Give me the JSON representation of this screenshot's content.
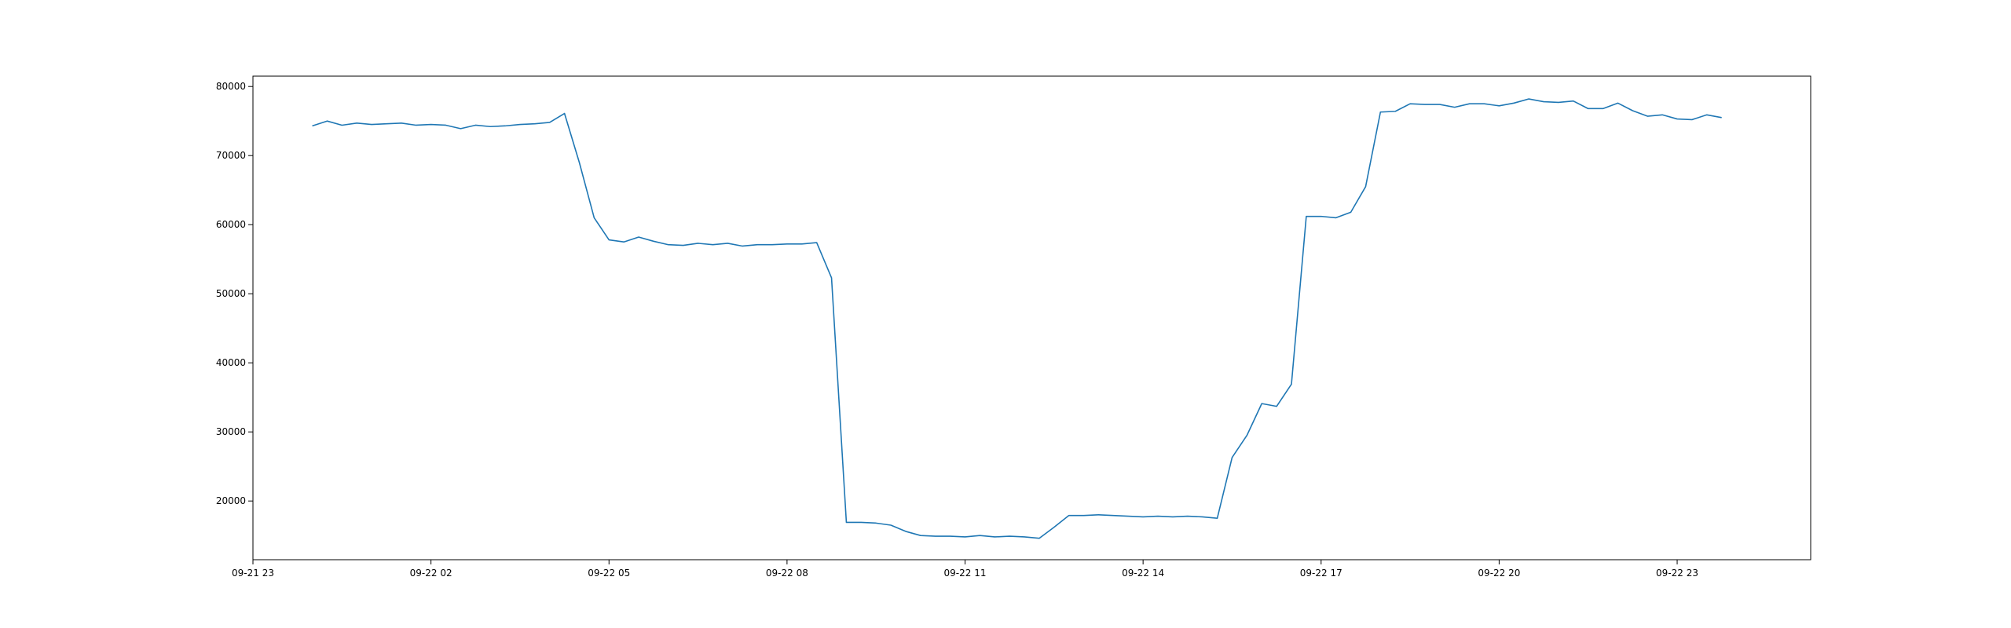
{
  "chart_data": {
    "type": "line",
    "title": "",
    "xlabel": "",
    "ylabel": "",
    "grid": false,
    "colors": {
      "line": "#1f77b4",
      "axes": "#000000",
      "background": "#ffffff"
    },
    "xlim": [
      "09-21 23:00",
      "09-23 01:15"
    ],
    "ylim": [
      11500,
      81500
    ],
    "x_tick_labels": [
      "09-21 23",
      "09-22 02",
      "09-22 05",
      "09-22 08",
      "09-22 11",
      "09-22 14",
      "09-22 17",
      "09-22 20",
      "09-22 23"
    ],
    "y_ticks": [
      20000,
      30000,
      40000,
      50000,
      60000,
      70000,
      80000
    ],
    "y_tick_labels": [
      "20000",
      "30000",
      "40000",
      "50000",
      "60000",
      "70000",
      "80000"
    ],
    "series": [
      {
        "name": "",
        "x": [
          "09-22 00:00",
          "09-22 00:15",
          "09-22 00:30",
          "09-22 00:45",
          "09-22 01:00",
          "09-22 01:15",
          "09-22 01:30",
          "09-22 01:45",
          "09-22 02:00",
          "09-22 02:15",
          "09-22 02:30",
          "09-22 02:45",
          "09-22 03:00",
          "09-22 03:15",
          "09-22 03:30",
          "09-22 03:45",
          "09-22 04:00",
          "09-22 04:15",
          "09-22 04:30",
          "09-22 04:45",
          "09-22 05:00",
          "09-22 05:15",
          "09-22 05:30",
          "09-22 05:45",
          "09-22 06:00",
          "09-22 06:15",
          "09-22 06:30",
          "09-22 06:45",
          "09-22 07:00",
          "09-22 07:15",
          "09-22 07:30",
          "09-22 07:45",
          "09-22 08:00",
          "09-22 08:15",
          "09-22 08:30",
          "09-22 08:45",
          "09-22 09:00",
          "09-22 09:15",
          "09-22 09:30",
          "09-22 09:45",
          "09-22 10:00",
          "09-22 10:15",
          "09-22 10:30",
          "09-22 10:45",
          "09-22 11:00",
          "09-22 11:15",
          "09-22 11:30",
          "09-22 11:45",
          "09-22 12:00",
          "09-22 12:15",
          "09-22 12:30",
          "09-22 12:45",
          "09-22 13:00",
          "09-22 13:15",
          "09-22 13:30",
          "09-22 13:45",
          "09-22 14:00",
          "09-22 14:15",
          "09-22 14:30",
          "09-22 14:45",
          "09-22 15:00",
          "09-22 15:15",
          "09-22 15:30",
          "09-22 15:45",
          "09-22 16:00",
          "09-22 16:15",
          "09-22 16:30",
          "09-22 16:45",
          "09-22 17:00",
          "09-22 17:15",
          "09-22 17:30",
          "09-22 17:45",
          "09-22 18:00",
          "09-22 18:15",
          "09-22 18:30",
          "09-22 18:45",
          "09-22 19:00",
          "09-22 19:15",
          "09-22 19:30",
          "09-22 19:45",
          "09-22 20:00",
          "09-22 20:15",
          "09-22 20:30",
          "09-22 20:45",
          "09-22 21:00",
          "09-22 21:15",
          "09-22 21:30",
          "09-22 21:45",
          "09-22 22:00",
          "09-22 22:15",
          "09-22 22:30",
          "09-22 22:45",
          "09-22 23:00",
          "09-22 23:15",
          "09-22 23:30",
          "09-22 23:45"
        ],
        "values": [
          74300,
          75000,
          74400,
          74700,
          74500,
          74600,
          74700,
          74400,
          74500,
          74400,
          73900,
          74400,
          74200,
          74300,
          74500,
          74600,
          74800,
          76100,
          69000,
          61000,
          57800,
          57500,
          58200,
          57600,
          57100,
          57000,
          57300,
          57100,
          57300,
          56900,
          57100,
          57100,
          57200,
          57200,
          57400,
          52300,
          16900,
          16900,
          16800,
          16500,
          15600,
          15000,
          14900,
          14900,
          14800,
          15000,
          14800,
          14900,
          14800,
          14600,
          16200,
          17900,
          17900,
          18000,
          17900,
          17800,
          17700,
          17800,
          17700,
          17800,
          17700,
          17500,
          26300,
          29500,
          34100,
          33700,
          36900,
          61200,
          61200,
          61000,
          61800,
          65500,
          76300,
          76400,
          77500,
          77400,
          77400,
          77000,
          77500,
          77500,
          77200,
          77600,
          78200,
          77800,
          77700,
          77900,
          76800,
          76800,
          77600,
          76500,
          75700,
          75900,
          75300,
          75200,
          75900,
          75500
        ]
      }
    ]
  }
}
